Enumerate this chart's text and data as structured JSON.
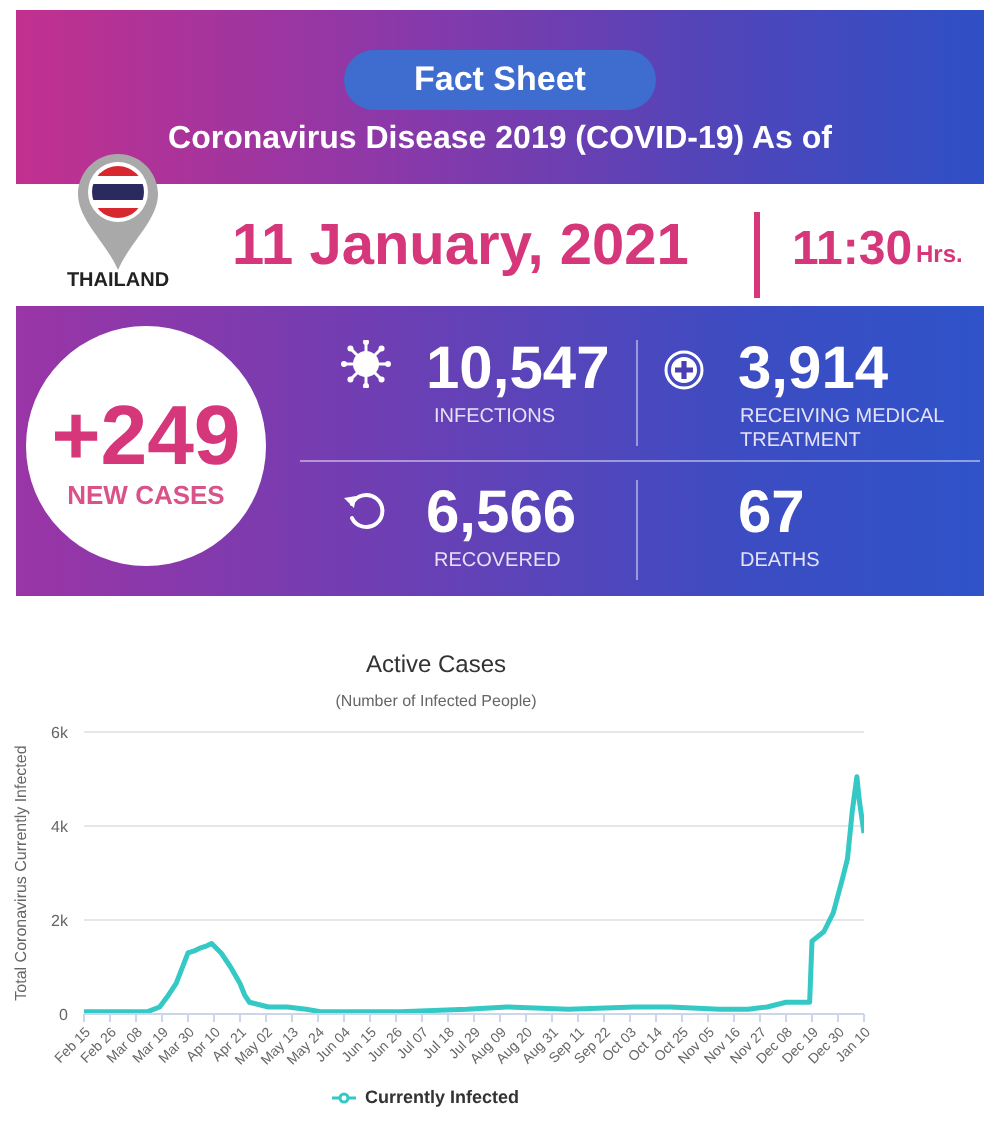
{
  "chart_data": [
    {
      "type": "other",
      "title": "Fact Sheet",
      "subtitle": "Coronavirus Disease 2019 (COVID-19) As of",
      "annotations": [
        "THAILAND",
        "11 January, 2021",
        "11:30",
        "Hrs.",
        "+249",
        "NEW CASES",
        "10,547",
        "INFECTIONS",
        "3,914",
        "RECEIVING MEDICAL TREATMENT",
        "6,566",
        "RECOVERED",
        "67",
        "DEATHS"
      ]
    },
    {
      "type": "line",
      "title": "Active Cases",
      "subtitle": "(Number of Infected People)",
      "ylabel": "Total Coronavirus Currently Infected",
      "x": [
        "2020-02-15",
        "2020-03-13",
        "2020-03-18",
        "2020-03-21",
        "2020-03-25",
        "2020-03-30",
        "2020-04-02",
        "2020-04-04",
        "2020-04-07",
        "2020-04-09",
        "2020-04-13",
        "2020-04-17",
        "2020-04-21",
        "2020-04-23",
        "2020-04-25",
        "2020-05-03",
        "2020-05-11",
        "2020-05-19",
        "2020-05-25",
        "2020-06-11",
        "2020-06-28",
        "2020-07-26",
        "2020-08-12",
        "2020-09-07",
        "2020-10-05",
        "2020-10-20",
        "2020-11-10",
        "2020-11-22",
        "2020-11-30",
        "2020-12-08",
        "2020-12-18",
        "2020-12-19",
        "2020-12-24",
        "2020-12-28",
        "2021-01-01",
        "2021-01-03",
        "2021-01-05",
        "2021-01-07",
        "2021-01-08",
        "2021-01-10"
      ],
      "series": [
        {
          "name": "Currently Infected",
          "color": "#35c9c5",
          "values": [
            50,
            50,
            150,
            350,
            650,
            1300,
            1350,
            1400,
            1450,
            1500,
            1300,
            1000,
            650,
            400,
            250,
            150,
            150,
            100,
            50,
            50,
            50,
            100,
            150,
            100,
            150,
            150,
            100,
            100,
            150,
            250,
            250,
            1550,
            1750,
            2150,
            2900,
            3300,
            4300,
            5050,
            4550,
            3850
          ]
        }
      ],
      "xlim": [
        "2020-02-15",
        "2021-01-10"
      ],
      "xticks": [
        {
          "value": "2020-02-15",
          "label": "Feb 15"
        },
        {
          "value": "2020-02-26",
          "label": "Feb 26"
        },
        {
          "value": "2020-03-08",
          "label": "Mar 08"
        },
        {
          "value": "2020-03-19",
          "label": "Mar 19"
        },
        {
          "value": "2020-03-30",
          "label": "Mar 30"
        },
        {
          "value": "2020-04-10",
          "label": "Apr 10"
        },
        {
          "value": "2020-04-21",
          "label": "Apr 21"
        },
        {
          "value": "2020-05-02",
          "label": "May 02"
        },
        {
          "value": "2020-05-13",
          "label": "May 13"
        },
        {
          "value": "2020-05-24",
          "label": "May 24"
        },
        {
          "value": "2020-06-04",
          "label": "Jun 04"
        },
        {
          "value": "2020-06-15",
          "label": "Jun 15"
        },
        {
          "value": "2020-06-26",
          "label": "Jun 26"
        },
        {
          "value": "2020-07-07",
          "label": "Jul 07"
        },
        {
          "value": "2020-07-18",
          "label": "Jul 18"
        },
        {
          "value": "2020-07-29",
          "label": "Jul 29"
        },
        {
          "value": "2020-08-09",
          "label": "Aug 09"
        },
        {
          "value": "2020-08-20",
          "label": "Aug 20"
        },
        {
          "value": "2020-08-31",
          "label": "Aug 31"
        },
        {
          "value": "2020-09-11",
          "label": "Sep 11"
        },
        {
          "value": "2020-09-22",
          "label": "Sep 22"
        },
        {
          "value": "2020-10-03",
          "label": "Oct 03"
        },
        {
          "value": "2020-10-14",
          "label": "Oct 14"
        },
        {
          "value": "2020-10-25",
          "label": "Oct 25"
        },
        {
          "value": "2020-11-05",
          "label": "Nov 05"
        },
        {
          "value": "2020-11-16",
          "label": "Nov 16"
        },
        {
          "value": "2020-11-27",
          "label": "Nov 27"
        },
        {
          "value": "2020-12-08",
          "label": "Dec 08"
        },
        {
          "value": "2020-12-19",
          "label": "Dec 19"
        },
        {
          "value": "2020-12-30",
          "label": "Dec 30"
        },
        {
          "value": "2021-01-10",
          "label": "Jan 10"
        }
      ],
      "ylim": [
        0,
        6000
      ],
      "yticks": [
        0,
        {
          "value": 2000,
          "label": "2k"
        },
        {
          "value": 4000,
          "label": "4k"
        },
        {
          "value": 6000,
          "label": "6k"
        }
      ],
      "grid": "y",
      "legend": "bottom",
      "marker": "none"
    }
  ]
}
